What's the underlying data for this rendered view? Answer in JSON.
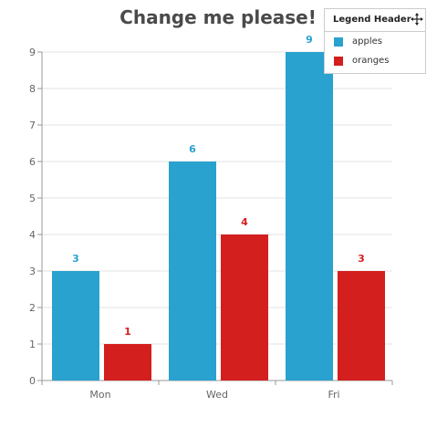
{
  "chart_data": {
    "type": "bar",
    "title": "Change me please!",
    "categories": [
      "Mon",
      "Wed",
      "Fri"
    ],
    "series": [
      {
        "name": "apples",
        "values": [
          3,
          6,
          9
        ],
        "color": "#29a2cf"
      },
      {
        "name": "oranges",
        "values": [
          1,
          4,
          3
        ],
        "color": "#d41f1f"
      }
    ],
    "ylim": [
      0,
      9
    ],
    "yticks": [
      0,
      1,
      2,
      3,
      4,
      5,
      6,
      7,
      8,
      9
    ],
    "grid": true,
    "data_labels": true,
    "legend": {
      "header": "Legend Header",
      "placement": "top-right",
      "icon": "move-icon"
    }
  }
}
